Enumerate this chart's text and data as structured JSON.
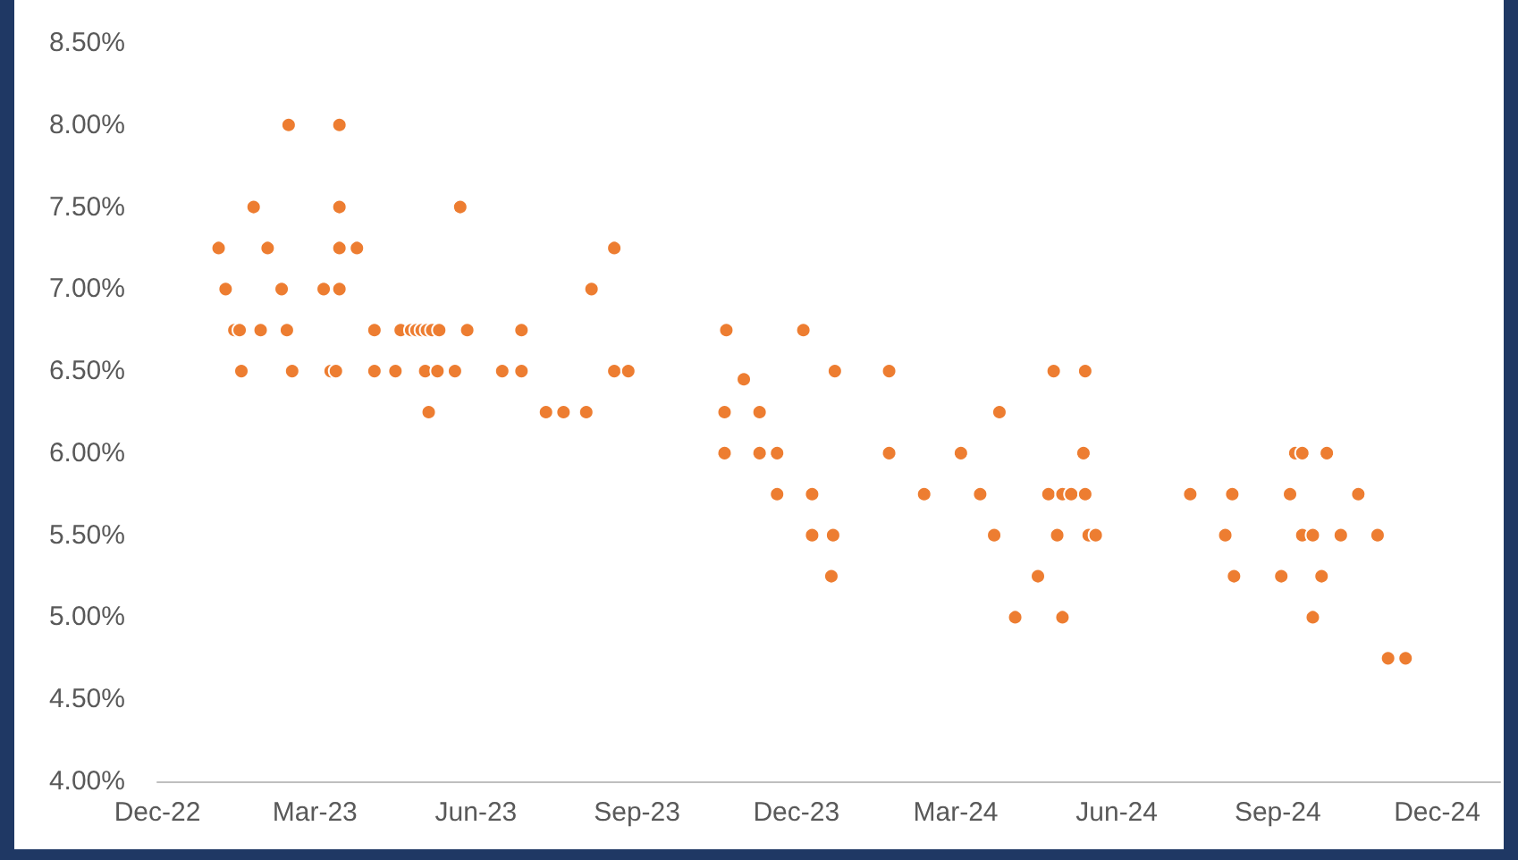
{
  "chart_data": {
    "type": "scatter",
    "marker": "circle",
    "grid": false,
    "xlim": [
      "2022-12-01",
      "2025-01-06"
    ],
    "xticks": [
      {
        "value": "2022-12-01",
        "label": "Dec-22"
      },
      {
        "value": "2023-03-01",
        "label": "Mar-23"
      },
      {
        "value": "2023-06-01",
        "label": "Jun-23"
      },
      {
        "value": "2023-09-01",
        "label": "Sep-23"
      },
      {
        "value": "2023-12-01",
        "label": "Dec-23"
      },
      {
        "value": "2024-03-01",
        "label": "Mar-24"
      },
      {
        "value": "2024-06-01",
        "label": "Jun-24"
      },
      {
        "value": "2024-09-01",
        "label": "Sep-24"
      },
      {
        "value": "2024-12-01",
        "label": "Dec-24"
      }
    ],
    "ylim": [
      4,
      8.5
    ],
    "yticks": [
      {
        "value": 4,
        "label": "4.00%"
      },
      {
        "value": 4.5,
        "label": "4.50%"
      },
      {
        "value": 5,
        "label": "5.00%"
      },
      {
        "value": 5.5,
        "label": "5.50%"
      },
      {
        "value": 6,
        "label": "6.00%"
      },
      {
        "value": 6.5,
        "label": "6.50%"
      },
      {
        "value": 7,
        "label": "7.00%"
      },
      {
        "value": 7.5,
        "label": "7.50%"
      },
      {
        "value": 8,
        "label": "8.00%"
      },
      {
        "value": 8.5,
        "label": "8.50%"
      }
    ],
    "series": [
      {
        "color": "#ed7d31",
        "x": [
          "2023-01-05",
          "2023-01-09",
          "2023-01-14",
          "2023-01-17",
          "2023-01-18",
          "2023-01-25",
          "2023-01-29",
          "2023-02-02",
          "2023-02-10",
          "2023-02-13",
          "2023-02-14",
          "2023-02-16",
          "2023-03-06",
          "2023-03-10",
          "2023-03-13",
          "2023-03-15",
          "2023-03-15",
          "2023-03-15",
          "2023-03-15",
          "2023-03-25",
          "2023-04-04",
          "2023-04-04",
          "2023-04-16",
          "2023-04-19",
          "2023-04-25",
          "2023-04-28",
          "2023-05-01",
          "2023-05-03",
          "2023-05-04",
          "2023-05-05",
          "2023-05-07",
          "2023-05-10",
          "2023-05-11",
          "2023-05-20",
          "2023-05-23",
          "2023-05-27",
          "2023-06-16",
          "2023-06-27",
          "2023-06-27",
          "2023-07-11",
          "2023-07-21",
          "2023-08-03",
          "2023-08-06",
          "2023-08-19",
          "2023-08-19",
          "2023-08-27",
          "2023-10-21",
          "2023-10-21",
          "2023-10-22",
          "2023-11-01",
          "2023-11-10",
          "2023-11-10",
          "2023-11-20",
          "2023-11-20",
          "2023-12-05",
          "2023-12-10",
          "2023-12-10",
          "2023-12-21",
          "2023-12-22",
          "2023-12-23",
          "2024-01-23",
          "2024-01-23",
          "2024-02-12",
          "2024-03-04",
          "2024-03-15",
          "2024-03-23",
          "2024-03-26",
          "2024-04-04",
          "2024-04-17",
          "2024-04-23",
          "2024-04-26",
          "2024-04-28",
          "2024-05-01",
          "2024-05-01",
          "2024-05-06",
          "2024-05-13",
          "2024-05-14",
          "2024-05-14",
          "2024-05-16",
          "2024-05-20",
          "2024-07-13",
          "2024-08-02",
          "2024-08-06",
          "2024-08-07",
          "2024-09-03",
          "2024-09-08",
          "2024-09-11",
          "2024-09-15",
          "2024-09-15",
          "2024-09-21",
          "2024-09-21",
          "2024-09-26",
          "2024-09-29",
          "2024-10-07",
          "2024-10-17",
          "2024-10-28",
          "2024-11-03",
          "2024-11-13"
        ],
        "values": [
          7.25,
          7,
          6.75,
          6.75,
          6.5,
          7.5,
          6.75,
          7.25,
          7,
          6.75,
          8,
          6.5,
          7,
          6.5,
          6.5,
          8,
          7.5,
          7.25,
          7,
          7.25,
          6.75,
          6.5,
          6.5,
          6.75,
          6.75,
          6.75,
          6.75,
          6.5,
          6.75,
          6.25,
          6.75,
          6.5,
          6.75,
          6.5,
          7.5,
          6.75,
          6.5,
          6.75,
          6.5,
          6.25,
          6.25,
          6.25,
          7,
          7.25,
          6.5,
          6.5,
          6.25,
          6,
          6.75,
          6.45,
          6.25,
          6,
          6,
          5.75,
          6.75,
          5.75,
          5.5,
          5.25,
          5.5,
          6.5,
          6.5,
          6,
          5.75,
          6,
          5.75,
          5.5,
          6.25,
          5,
          5.25,
          5.75,
          6.5,
          5.5,
          5.75,
          5,
          5.75,
          6,
          6.5,
          5.75,
          5.5,
          5.5,
          5.75,
          5.5,
          5.75,
          5.25,
          5.25,
          5.75,
          6,
          6,
          5.5,
          5.5,
          5,
          5.25,
          6,
          5.5,
          5.75,
          5.5,
          4.75,
          4.75
        ]
      }
    ]
  }
}
